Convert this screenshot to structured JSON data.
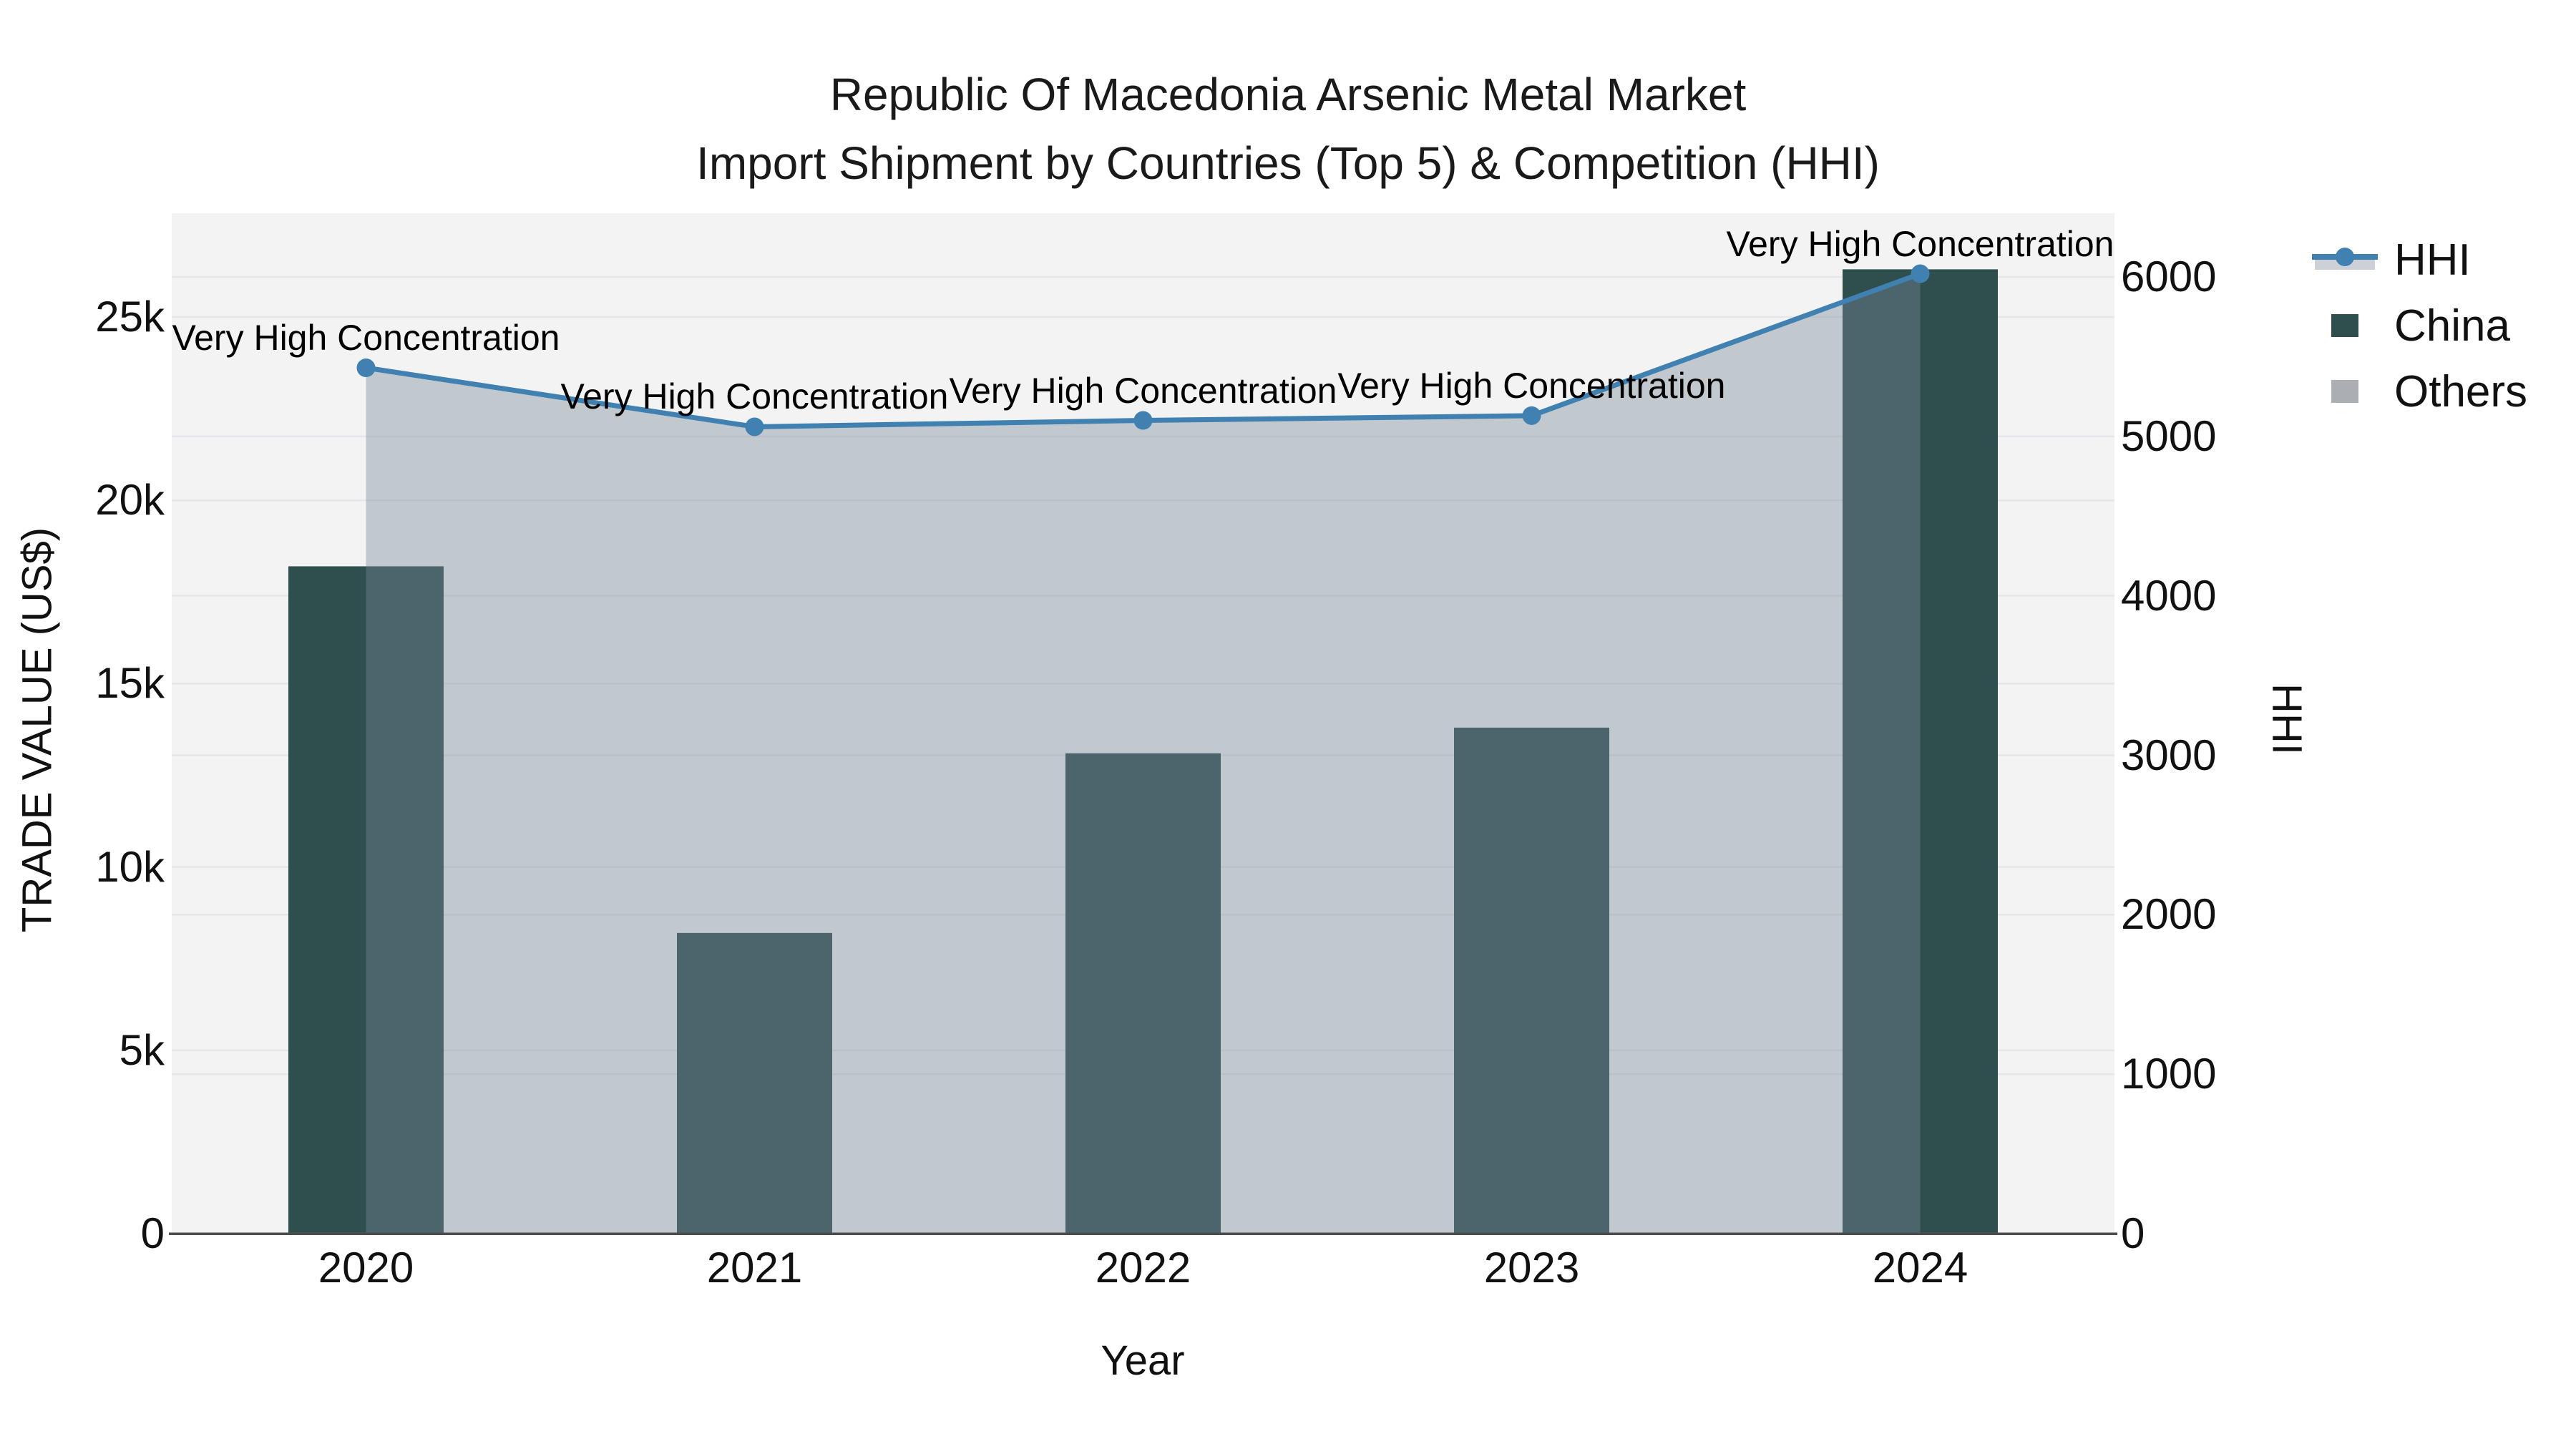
{
  "title": {
    "line1": "Republic Of Macedonia Arsenic Metal Market",
    "line2": "Import Shipment by Countries (Top 5) & Competition (HHI)"
  },
  "chart_data": {
    "type": "combo",
    "categories": [
      "2020",
      "2021",
      "2022",
      "2023",
      "2024"
    ],
    "series": [
      {
        "name": "China",
        "type": "bar",
        "axis": "left",
        "values": [
          18200,
          8200,
          13100,
          13800,
          26300
        ]
      },
      {
        "name": "Others",
        "type": "area",
        "axis": "right",
        "values": [
          5430,
          5060,
          5100,
          5130,
          6020
        ]
      },
      {
        "name": "HHI",
        "type": "line",
        "axis": "right",
        "values": [
          5430,
          5060,
          5100,
          5130,
          6020
        ]
      }
    ],
    "annotations": [
      "Very High Concentration",
      "Very High Concentration",
      "Very High Concentration",
      "Very High Concentration",
      "Very High Concentration"
    ],
    "x_axis": {
      "title": "Year"
    },
    "left_axis": {
      "title": "TRADE VALUE (US$)",
      "tick_labels": [
        "0",
        "5k",
        "10k",
        "15k",
        "20k",
        "25k"
      ],
      "tick_values": [
        0,
        5000,
        10000,
        15000,
        20000,
        25000
      ],
      "range": [
        0,
        27800
      ]
    },
    "right_axis": {
      "title": "HHI",
      "tick_labels": [
        "0",
        "1000",
        "2000",
        "3000",
        "4000",
        "5000",
        "6000"
      ],
      "tick_values": [
        0,
        1000,
        2000,
        3000,
        4000,
        5000,
        6000
      ],
      "range": [
        0,
        6400
      ]
    },
    "legend_position": "right",
    "grid": true
  },
  "legend": [
    {
      "label": "HHI",
      "symbol": "line-marker"
    },
    {
      "label": "China",
      "symbol": "square"
    },
    {
      "label": "Others",
      "symbol": "square"
    }
  ],
  "colors": {
    "china_bar": "#2F4F4F",
    "others_area": "rgba(119,136,153,0.40)",
    "hhi_line": "#4081B1",
    "others_legend_swatch": "#ABAEB3",
    "hhi_legend_band": "#CCD1D8",
    "panel_bg": "#F2F3F2",
    "gridline": "#E4E6E9",
    "axis_line": "#4D4D4D",
    "text": "#111111"
  }
}
